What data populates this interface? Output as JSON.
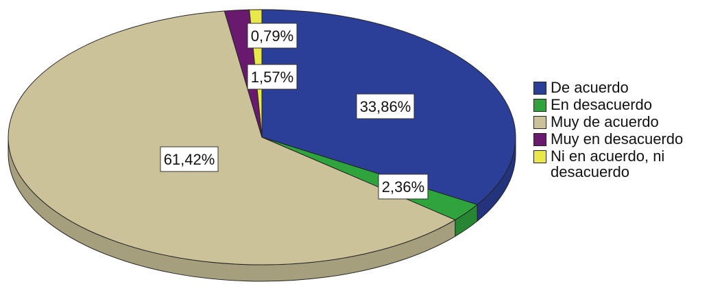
{
  "chart_data": {
    "type": "pie",
    "title": "",
    "legend_position": "right",
    "slices": [
      {
        "name": "De acuerdo",
        "value": 33.86,
        "label": "33,86%",
        "color": "#2b3f99"
      },
      {
        "name": "En desacuerdo",
        "value": 2.36,
        "label": "2,36%",
        "color": "#2fa33c"
      },
      {
        "name": "Muy de acuerdo",
        "value": 61.42,
        "label": "61,42%",
        "color": "#cbc29a"
      },
      {
        "name": "Muy en desacuerdo",
        "value": 1.57,
        "label": "1,57%",
        "color": "#6a1a6e"
      },
      {
        "name": "Ni en acuerdo, ni desacuerdo",
        "value": 0.79,
        "label": "0,79%",
        "color": "#e8e84a"
      }
    ]
  },
  "legend": {
    "items": [
      {
        "label": "De acuerdo",
        "color": "#2b3f99"
      },
      {
        "label": "En desacuerdo",
        "color": "#2fa33c"
      },
      {
        "label": "Muy de acuerdo",
        "color": "#cbc29a"
      },
      {
        "label": "Muy en desacuerdo",
        "color": "#6a1a6e"
      },
      {
        "label": "Ni en acuerdo, ni\ndesacuerdo",
        "color": "#e8e84a"
      }
    ]
  }
}
